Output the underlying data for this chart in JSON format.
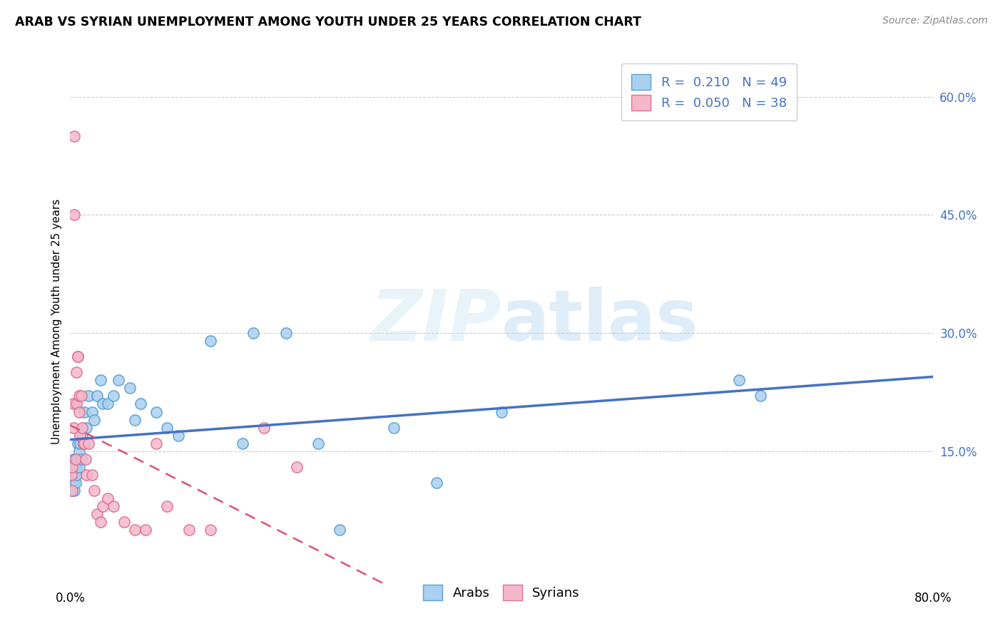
{
  "title": "ARAB VS SYRIAN UNEMPLOYMENT AMONG YOUTH UNDER 25 YEARS CORRELATION CHART",
  "source": "Source: ZipAtlas.com",
  "ylabel": "Unemployment Among Youth under 25 years",
  "xlim": [
    0.0,
    0.8
  ],
  "ylim": [
    -0.02,
    0.65
  ],
  "ytick_labels_right": [
    "15.0%",
    "30.0%",
    "45.0%",
    "60.0%"
  ],
  "ytick_vals_right": [
    0.15,
    0.3,
    0.45,
    0.6
  ],
  "arab_color": "#aacfef",
  "arab_edge_color": "#5a9fd4",
  "syrian_color": "#f5b8cb",
  "syrian_edge_color": "#e07090",
  "trend_arab_color": "#4472c4",
  "trend_syrian_color": "#e05070",
  "R_arab": 0.21,
  "N_arab": 49,
  "R_syrian": 0.05,
  "N_syrian": 38,
  "legend_labels": [
    "Arabs",
    "Syrians"
  ],
  "arab_x": [
    0.001,
    0.002,
    0.002,
    0.003,
    0.003,
    0.003,
    0.004,
    0.004,
    0.005,
    0.005,
    0.005,
    0.006,
    0.006,
    0.007,
    0.007,
    0.008,
    0.008,
    0.009,
    0.01,
    0.011,
    0.012,
    0.013,
    0.015,
    0.017,
    0.02,
    0.022,
    0.025,
    0.028,
    0.03,
    0.035,
    0.04,
    0.045,
    0.055,
    0.06,
    0.065,
    0.08,
    0.09,
    0.1,
    0.13,
    0.16,
    0.17,
    0.2,
    0.23,
    0.25,
    0.3,
    0.34,
    0.4,
    0.62,
    0.64
  ],
  "arab_y": [
    0.12,
    0.13,
    0.1,
    0.14,
    0.12,
    0.11,
    0.13,
    0.1,
    0.12,
    0.14,
    0.11,
    0.13,
    0.12,
    0.16,
    0.14,
    0.15,
    0.13,
    0.16,
    0.14,
    0.17,
    0.16,
    0.2,
    0.18,
    0.22,
    0.2,
    0.19,
    0.22,
    0.24,
    0.21,
    0.21,
    0.22,
    0.24,
    0.23,
    0.19,
    0.21,
    0.2,
    0.18,
    0.17,
    0.29,
    0.16,
    0.3,
    0.3,
    0.16,
    0.05,
    0.18,
    0.11,
    0.2,
    0.24,
    0.22
  ],
  "syrian_x": [
    0.001,
    0.002,
    0.002,
    0.003,
    0.003,
    0.004,
    0.004,
    0.005,
    0.006,
    0.006,
    0.007,
    0.007,
    0.008,
    0.008,
    0.009,
    0.01,
    0.011,
    0.012,
    0.013,
    0.014,
    0.015,
    0.017,
    0.02,
    0.022,
    0.025,
    0.028,
    0.03,
    0.035,
    0.04,
    0.05,
    0.06,
    0.07,
    0.08,
    0.09,
    0.11,
    0.13,
    0.18,
    0.21
  ],
  "syrian_y": [
    0.12,
    0.1,
    0.13,
    0.18,
    0.21,
    0.55,
    0.45,
    0.14,
    0.21,
    0.25,
    0.27,
    0.27,
    0.2,
    0.22,
    0.17,
    0.22,
    0.18,
    0.16,
    0.16,
    0.14,
    0.12,
    0.16,
    0.12,
    0.1,
    0.07,
    0.06,
    0.08,
    0.09,
    0.08,
    0.06,
    0.05,
    0.05,
    0.16,
    0.08,
    0.05,
    0.05,
    0.18,
    0.13
  ]
}
